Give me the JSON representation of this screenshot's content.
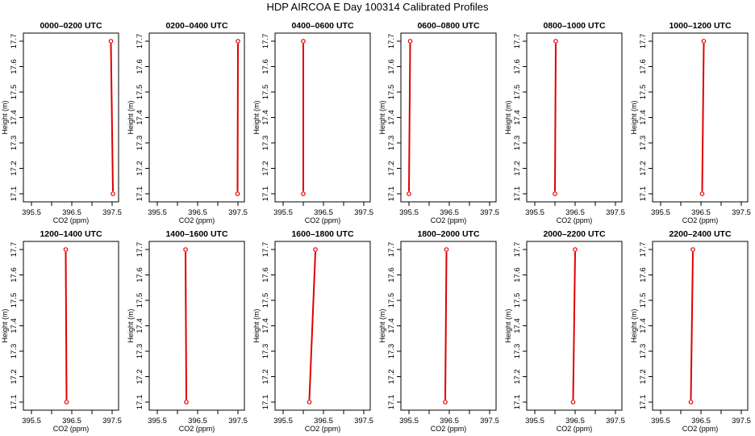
{
  "title": "HDP AIRCOA E  Day 100314  Calibrated Profiles",
  "colors": {
    "profile": "#e00000",
    "axis": "#000000"
  },
  "chart_data": [
    {
      "type": "line",
      "title": "0000–0200 UTC",
      "xlabel": "CO2 (ppm)",
      "ylabel": "Height (m)",
      "xlim": [
        395.5,
        397.5
      ],
      "ylim": [
        17.1,
        17.7
      ],
      "xticks": [
        "395.5",
        "396.5",
        "397.5"
      ],
      "yticks": [
        "17.1",
        "17.2",
        "17.3",
        "17.4",
        "17.5",
        "17.6",
        "17.7"
      ],
      "x": [
        397.47,
        397.52
      ],
      "y": [
        17.7,
        17.1
      ],
      "grid": false
    },
    {
      "type": "line",
      "title": "0200–0400 UTC",
      "xlabel": "CO2 (ppm)",
      "ylabel": "Height (m)",
      "xlim": [
        395.5,
        397.5
      ],
      "ylim": [
        17.1,
        17.7
      ],
      "xticks": [
        "395.5",
        "396.5",
        "397.5"
      ],
      "yticks": [
        "17.1",
        "17.2",
        "17.3",
        "17.4",
        "17.5",
        "17.6",
        "17.7"
      ],
      "x": [
        397.5,
        397.49
      ],
      "y": [
        17.7,
        17.1
      ],
      "grid": false
    },
    {
      "type": "line",
      "title": "0400–0600 UTC",
      "xlabel": "CO2 (ppm)",
      "ylabel": "Height (m)",
      "xlim": [
        395.5,
        397.5
      ],
      "ylim": [
        17.1,
        17.7
      ],
      "xticks": [
        "395.5",
        "396.5",
        "397.5"
      ],
      "yticks": [
        "17.1",
        "17.2",
        "17.3",
        "17.4",
        "17.5",
        "17.6",
        "17.7"
      ],
      "x": [
        396.0,
        396.0
      ],
      "y": [
        17.7,
        17.1
      ],
      "grid": false
    },
    {
      "type": "line",
      "title": "0600–0800 UTC",
      "xlabel": "CO2 (ppm)",
      "ylabel": "Height (m)",
      "xlim": [
        395.5,
        397.5
      ],
      "ylim": [
        17.1,
        17.7
      ],
      "xticks": [
        "395.5",
        "396.5",
        "397.5"
      ],
      "yticks": [
        "17.1",
        "17.2",
        "17.3",
        "17.4",
        "17.5",
        "17.6",
        "17.7"
      ],
      "x": [
        395.53,
        395.5
      ],
      "y": [
        17.7,
        17.1
      ],
      "grid": false
    },
    {
      "type": "line",
      "title": "0800–1000 UTC",
      "xlabel": "CO2 (ppm)",
      "ylabel": "Height (m)",
      "xlim": [
        395.5,
        397.5
      ],
      "ylim": [
        17.1,
        17.7
      ],
      "xticks": [
        "395.5",
        "396.5",
        "397.5"
      ],
      "yticks": [
        "17.1",
        "17.2",
        "17.3",
        "17.4",
        "17.5",
        "17.6",
        "17.7"
      ],
      "x": [
        396.02,
        396.0
      ],
      "y": [
        17.7,
        17.1
      ],
      "grid": false
    },
    {
      "type": "line",
      "title": "1000–1200 UTC",
      "xlabel": "CO2 (ppm)",
      "ylabel": "Height (m)",
      "xlim": [
        395.5,
        397.5
      ],
      "ylim": [
        17.1,
        17.7
      ],
      "xticks": [
        "395.5",
        "396.5",
        "397.5"
      ],
      "yticks": [
        "17.1",
        "17.2",
        "17.3",
        "17.4",
        "17.5",
        "17.6",
        "17.7"
      ],
      "x": [
        396.57,
        396.53
      ],
      "y": [
        17.7,
        17.1
      ],
      "grid": false
    },
    {
      "type": "line",
      "title": "1200–1400 UTC",
      "xlabel": "CO2 (ppm)",
      "ylabel": "Height (m)",
      "xlim": [
        395.5,
        397.5
      ],
      "ylim": [
        17.1,
        17.7
      ],
      "xticks": [
        "395.5",
        "396.5",
        "397.5"
      ],
      "yticks": [
        "17.1",
        "17.2",
        "17.3",
        "17.4",
        "17.5",
        "17.6",
        "17.7"
      ],
      "x": [
        396.35,
        396.37
      ],
      "y": [
        17.7,
        17.1
      ],
      "grid": false
    },
    {
      "type": "line",
      "title": "1400–1600 UTC",
      "xlabel": "CO2 (ppm)",
      "ylabel": "Height (m)",
      "xlim": [
        395.5,
        397.5
      ],
      "ylim": [
        17.1,
        17.7
      ],
      "xticks": [
        "395.5",
        "396.5",
        "397.5"
      ],
      "yticks": [
        "17.1",
        "17.2",
        "17.3",
        "17.4",
        "17.5",
        "17.6",
        "17.7"
      ],
      "x": [
        396.2,
        396.22
      ],
      "y": [
        17.7,
        17.1
      ],
      "grid": false
    },
    {
      "type": "line",
      "title": "1600–1800 UTC",
      "xlabel": "CO2 (ppm)",
      "ylabel": "Height (m)",
      "xlim": [
        395.5,
        397.5
      ],
      "ylim": [
        17.1,
        17.7
      ],
      "xticks": [
        "395.5",
        "396.5",
        "397.5"
      ],
      "yticks": [
        "17.1",
        "17.2",
        "17.3",
        "17.4",
        "17.5",
        "17.6",
        "17.7"
      ],
      "x": [
        396.3,
        396.15
      ],
      "y": [
        17.7,
        17.1
      ],
      "grid": false
    },
    {
      "type": "line",
      "title": "1800–2000 UTC",
      "xlabel": "CO2 (ppm)",
      "ylabel": "Height (m)",
      "xlim": [
        395.5,
        397.5
      ],
      "ylim": [
        17.1,
        17.7
      ],
      "xticks": [
        "395.5",
        "396.5",
        "397.5"
      ],
      "yticks": [
        "17.1",
        "17.2",
        "17.3",
        "17.4",
        "17.5",
        "17.6",
        "17.7"
      ],
      "x": [
        396.43,
        396.4
      ],
      "y": [
        17.7,
        17.1
      ],
      "grid": false
    },
    {
      "type": "line",
      "title": "2000–2200 UTC",
      "xlabel": "CO2 (ppm)",
      "ylabel": "Height (m)",
      "xlim": [
        395.5,
        397.5
      ],
      "ylim": [
        17.1,
        17.7
      ],
      "xticks": [
        "395.5",
        "396.5",
        "397.5"
      ],
      "yticks": [
        "17.1",
        "17.2",
        "17.3",
        "17.4",
        "17.5",
        "17.6",
        "17.7"
      ],
      "x": [
        396.5,
        396.45
      ],
      "y": [
        17.7,
        17.1
      ],
      "grid": false
    },
    {
      "type": "line",
      "title": "2200–2400 UTC",
      "xlabel": "CO2 (ppm)",
      "ylabel": "Height (m)",
      "xlim": [
        395.5,
        397.5
      ],
      "ylim": [
        17.1,
        17.7
      ],
      "xticks": [
        "395.5",
        "396.5",
        "397.5"
      ],
      "yticks": [
        "17.1",
        "17.2",
        "17.3",
        "17.4",
        "17.5",
        "17.6",
        "17.7"
      ],
      "x": [
        396.3,
        396.25
      ],
      "y": [
        17.7,
        17.1
      ],
      "grid": false
    }
  ]
}
